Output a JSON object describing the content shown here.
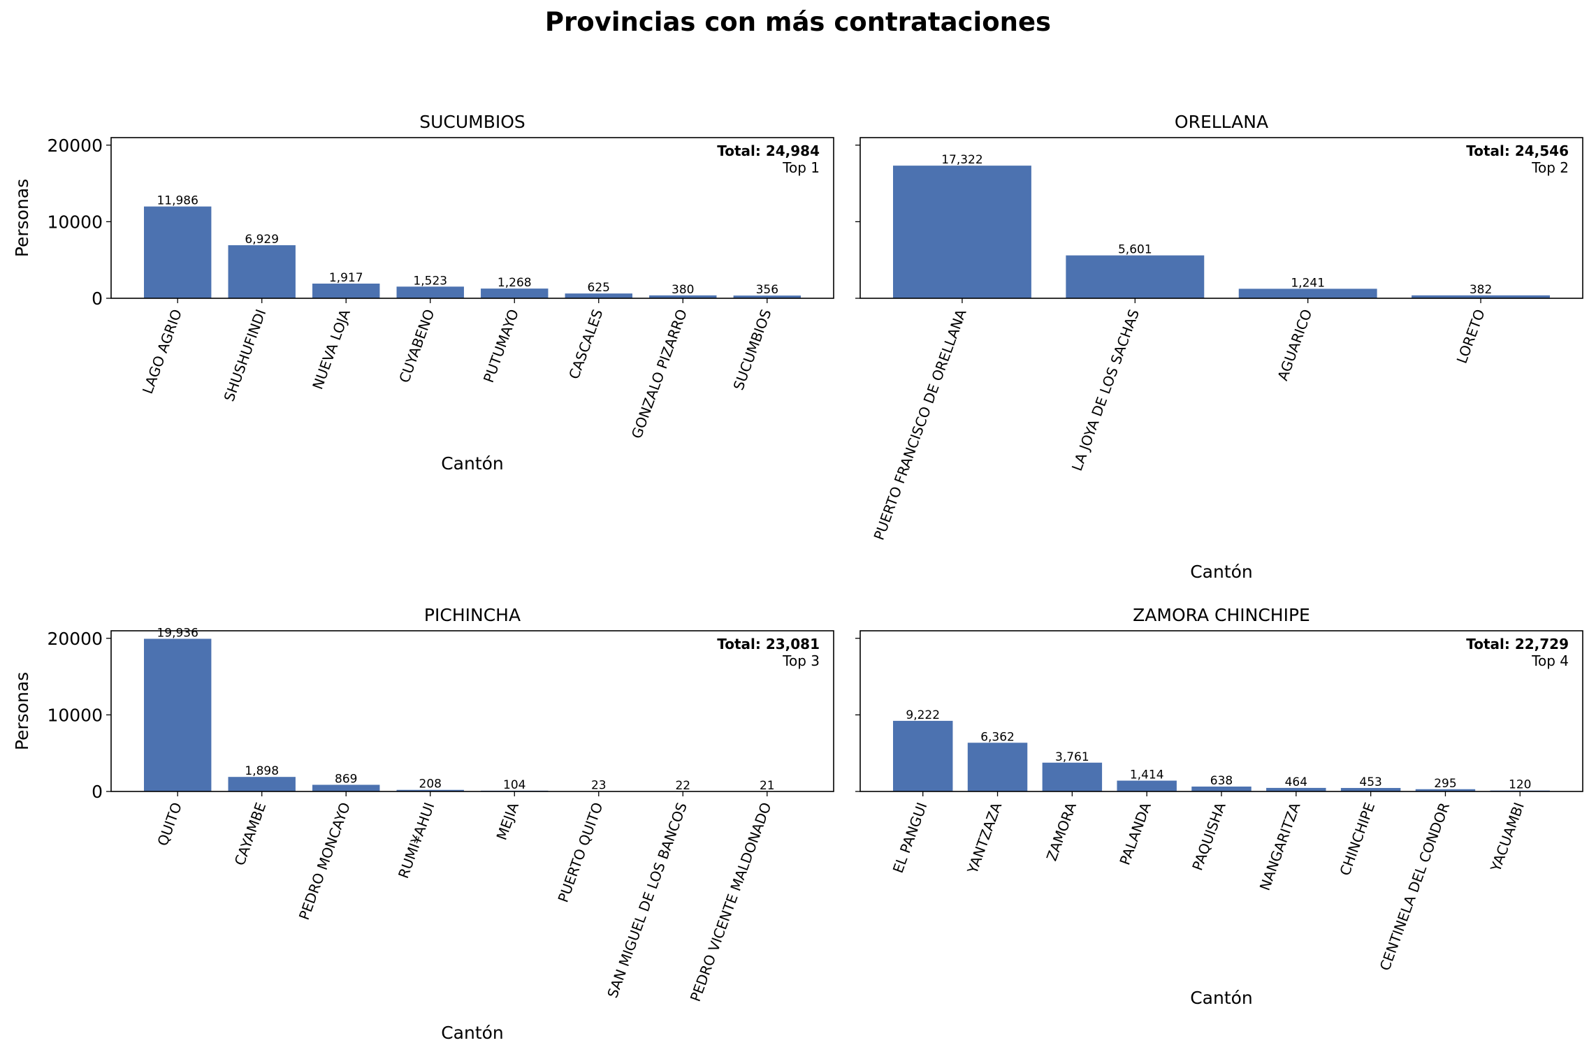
{
  "figure": {
    "title": "Provincias con más contrataciones",
    "bar_color": "#4c72b0"
  },
  "chart_data": [
    {
      "type": "bar",
      "title": "SUCUMBIOS",
      "xlabel": "Cantón",
      "ylabel": "Personas",
      "ylim": [
        0,
        20981
      ],
      "yticks": [
        0,
        10000,
        20000
      ],
      "total_label": "Total: 24,984",
      "rank_label": "Top 1",
      "categories": [
        "LAGO AGRIO",
        "SHUSHUFINDI",
        "NUEVA LOJA",
        "CUYABENO",
        "PUTUMAYO",
        "CASCALES",
        "GONZALO PIZARRO",
        "SUCUMBIOS"
      ],
      "values": [
        11986,
        6929,
        1917,
        1523,
        1268,
        625,
        380,
        356
      ],
      "value_labels": [
        "11,986",
        "6,929",
        "1,917",
        "1,523",
        "1,268",
        "625",
        "380",
        "356"
      ]
    },
    {
      "type": "bar",
      "title": "ORELLANA",
      "xlabel": "Cantón",
      "ylabel": "",
      "ylim": [
        0,
        20981
      ],
      "yticks": [
        0,
        10000,
        20000
      ],
      "total_label": "Total: 24,546",
      "rank_label": "Top 2",
      "categories": [
        "PUERTO FRANCISCO DE ORELLANA",
        "LA JOYA DE LOS SACHAS",
        "AGUARICO",
        "LORETO"
      ],
      "values": [
        17322,
        5601,
        1241,
        382
      ],
      "value_labels": [
        "17,322",
        "5,601",
        "1,241",
        "382"
      ]
    },
    {
      "type": "bar",
      "title": "PICHINCHA",
      "xlabel": "Cantón",
      "ylabel": "Personas",
      "ylim": [
        0,
        20981
      ],
      "yticks": [
        0,
        10000,
        20000
      ],
      "total_label": "Total: 23,081",
      "rank_label": "Top 3",
      "categories": [
        "QUITO",
        "CAYAMBE",
        "PEDRO MONCAYO",
        "RUMI¥AHUI",
        "MEJIA",
        "PUERTO QUITO",
        "SAN MIGUEL DE LOS BANCOS",
        "PEDRO VICENTE MALDONADO"
      ],
      "values": [
        19936,
        1898,
        869,
        208,
        104,
        23,
        22,
        21
      ],
      "value_labels": [
        "19,936",
        "1,898",
        "869",
        "208",
        "104",
        "23",
        "22",
        "21"
      ]
    },
    {
      "type": "bar",
      "title": "ZAMORA CHINCHIPE",
      "xlabel": "Cantón",
      "ylabel": "",
      "ylim": [
        0,
        20981
      ],
      "yticks": [
        0,
        10000,
        20000
      ],
      "total_label": "Total: 22,729",
      "rank_label": "Top 4",
      "categories": [
        "EL PANGUI",
        "YANTZAZA",
        "ZAMORA",
        "PALANDA",
        "PAQUISHA",
        "NANGARITZA",
        "CHINCHIPE",
        "CENTINELA DEL CONDOR",
        "YACUAMBI"
      ],
      "values": [
        9222,
        6362,
        3761,
        1414,
        638,
        464,
        453,
        295,
        120
      ],
      "value_labels": [
        "9,222",
        "6,362",
        "3,761",
        "1,414",
        "638",
        "464",
        "453",
        "295",
        "120"
      ]
    }
  ]
}
